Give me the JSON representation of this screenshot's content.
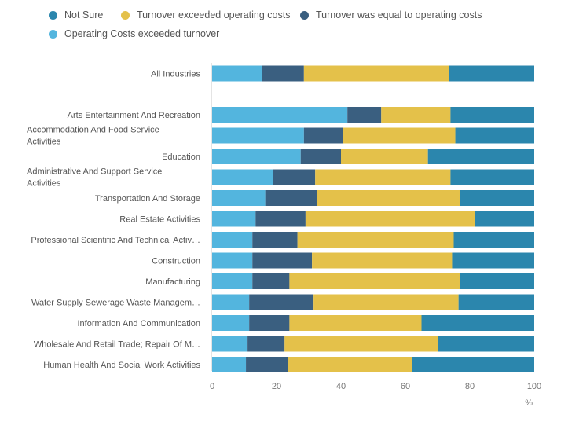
{
  "colors": {
    "not_sure": "#2b86ad",
    "turnover_exceeded": "#e4c14a",
    "turnover_equal": "#3a5f80",
    "costs_exceeded": "#53b5de"
  },
  "chart_data": {
    "type": "bar",
    "orientation": "horizontal",
    "stacked": true,
    "xlabel": "%",
    "xlim": [
      0,
      100
    ],
    "xticks": [
      0,
      20,
      40,
      60,
      80,
      100
    ],
    "legend_position": "top",
    "grid": false,
    "legend": [
      {
        "name": "Not Sure",
        "color": "#2b86ad"
      },
      {
        "name": "Turnover exceeded operating costs",
        "color": "#e4c14a"
      },
      {
        "name": "Turnover was equal to operating costs",
        "color": "#3a5f80"
      },
      {
        "name": "Operating Costs exceeded turnover",
        "color": "#53b5de"
      }
    ],
    "categories": [
      {
        "label": [
          "All Industries"
        ],
        "gap_after": true
      },
      {
        "label": [
          "Arts Entertainment And Recreation"
        ]
      },
      {
        "label": [
          "Accommodation And Food Service",
          "Activities"
        ]
      },
      {
        "label": [
          "Education"
        ]
      },
      {
        "label": [
          "Administrative And Support Service",
          "Activities"
        ]
      },
      {
        "label": [
          "Transportation And Storage"
        ]
      },
      {
        "label": [
          "Real Estate Activities"
        ]
      },
      {
        "label": [
          "Professional Scientific And Technical Activ…"
        ]
      },
      {
        "label": [
          "Construction"
        ]
      },
      {
        "label": [
          "Manufacturing"
        ]
      },
      {
        "label": [
          "Water Supply Sewerage Waste Managem…"
        ]
      },
      {
        "label": [
          "Information And Communication"
        ]
      },
      {
        "label": [
          "Wholesale And Retail Trade; Repair Of M…"
        ]
      },
      {
        "label": [
          "Human Health And Social Work Activities"
        ]
      }
    ],
    "series": [
      {
        "name": "Operating Costs exceeded turnover",
        "color": "#53b5de",
        "values": [
          15.5,
          42,
          28.5,
          27.5,
          19,
          16.5,
          13.5,
          12.5,
          12.5,
          12.5,
          11.5,
          11.5,
          11,
          10.5
        ]
      },
      {
        "name": "Turnover was equal to operating costs",
        "color": "#3a5f80",
        "values": [
          13,
          10.5,
          12,
          12.5,
          13,
          16,
          15.5,
          14,
          18.5,
          11.5,
          20,
          12.5,
          11.5,
          13
        ]
      },
      {
        "name": "Turnover exceeded operating costs",
        "color": "#e4c14a",
        "values": [
          45,
          21.5,
          35,
          27,
          42,
          44.5,
          52.5,
          48.5,
          43.5,
          53,
          45,
          41,
          47.5,
          38.5
        ]
      },
      {
        "name": "Not Sure",
        "color": "#2b86ad",
        "values": [
          26.5,
          26,
          24.5,
          33,
          26,
          23,
          18.5,
          25,
          25.5,
          23,
          23.5,
          35,
          30,
          38
        ]
      }
    ]
  }
}
